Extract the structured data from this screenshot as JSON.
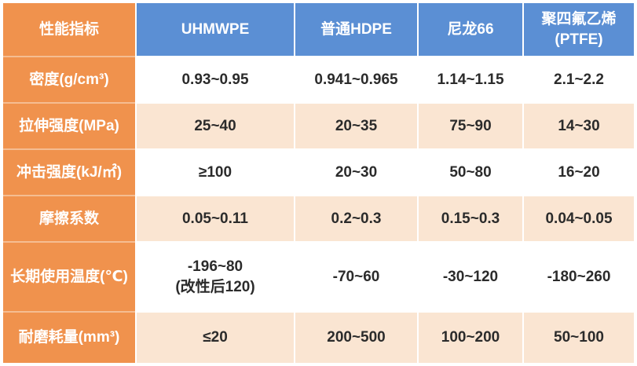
{
  "colors": {
    "header_blue": "#5B8FD4",
    "label_orange": "#F0924D",
    "row_alt_peach": "#FAE5D2",
    "data_text": "#2b2b2b",
    "grid_gap": "#ffffff"
  },
  "chart_data": {
    "type": "table",
    "corner_header": "性能指标",
    "columns": [
      "UHMWPE",
      "普通HDPE",
      "尼龙66",
      "聚四氟乙烯\n(PTFE)"
    ],
    "rows": [
      {
        "label": "密度(g/cm³)",
        "values": [
          "0.93~0.95",
          "0.941~0.965",
          "1.14~1.15",
          "2.1~2.2"
        ]
      },
      {
        "label": "拉伸强度(MPa)",
        "values": [
          "25~40",
          "20~35",
          "75~90",
          "14~30"
        ]
      },
      {
        "label": "冲击强度(kJ/㎡)",
        "values": [
          "≥100",
          "20~30",
          "50~80",
          "16~20"
        ]
      },
      {
        "label": "摩擦系数",
        "values": [
          "0.05~0.11",
          "0.2~0.3",
          "0.15~0.3",
          "0.04~0.05"
        ]
      },
      {
        "label": "长期使用温度(℃)",
        "values": [
          "-196~80\n(改性后120)",
          "-70~60",
          "-30~120",
          "-180~260"
        ]
      },
      {
        "label": "耐磨耗量(mm³)",
        "values": [
          "≤20",
          "200~500",
          "100~200",
          "50~100"
        ]
      }
    ]
  }
}
